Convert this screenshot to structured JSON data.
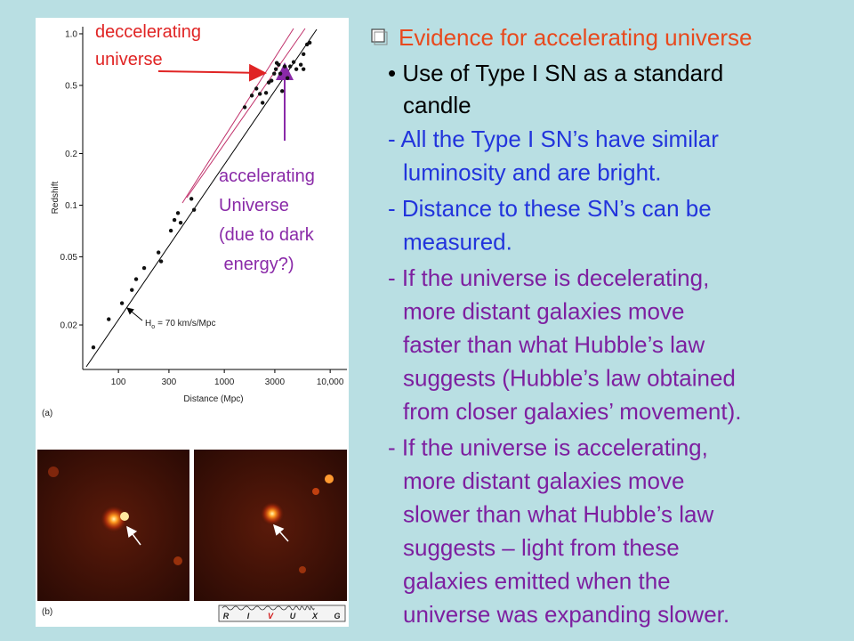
{
  "chart_data": {
    "type": "scatter",
    "y_label": "Redshift",
    "x_label": "Distance (Mpc)",
    "panel_label": "(a)",
    "hubble_label": {
      "symbol": "H",
      "subscript": "o",
      "text": "= 70 km/s/Mpc"
    },
    "color": "#111111",
    "log_x": true,
    "log_y": true,
    "xlim": [
      46,
      14400
    ],
    "ylim": [
      0.011,
      1.1
    ],
    "xticks": [
      100,
      300,
      1000,
      3000,
      {
        "value": 10000,
        "label": "10,000"
      }
    ],
    "yticks": [
      {
        "value": 1,
        "label": "1.0"
      },
      0.5,
      0.2,
      0.1,
      0.05,
      0.02
    ],
    "x": [
      58,
      81,
      108,
      134,
      147,
      175,
      239,
      253,
      313,
      338,
      365,
      387,
      489,
      518,
      1560,
      1820,
      2010,
      2170,
      2300,
      2480,
      2630,
      2790,
      2960,
      3070,
      3260,
      3380,
      3520,
      3720,
      3950,
      4190,
      4520,
      4790,
      5280,
      5600,
      5600,
      6050,
      6410,
      3130
    ],
    "y": [
      0.0148,
      0.0216,
      0.0268,
      0.032,
      0.037,
      0.043,
      0.053,
      0.047,
      0.071,
      0.082,
      0.09,
      0.079,
      0.109,
      0.094,
      0.373,
      0.436,
      0.479,
      0.446,
      0.396,
      0.452,
      0.52,
      0.533,
      0.586,
      0.622,
      0.66,
      0.586,
      0.463,
      0.645,
      0.552,
      0.645,
      0.684,
      0.622,
      0.66,
      0.622,
      0.761,
      0.867,
      0.888,
      0.676
    ]
  },
  "figure": {
    "decelerating_label": [
      "deccelerating",
      "universe"
    ],
    "accelerating_label": [
      "accelerating",
      "Universe",
      "(due to dark",
      " energy?)"
    ],
    "panel_b_label": "(b)",
    "filter_bands": [
      "R",
      "I",
      "V",
      "U",
      "X",
      "G"
    ]
  },
  "slide": {
    "heading": "Evidence for accelerating universe",
    "bullet": [
      "• Use of Type I SN as a standard",
      "candle"
    ],
    "blue_items": [
      [
        "- All the Type I SN’s have similar",
        "luminosity and are bright."
      ],
      [
        "- Distance to these SN’s can be",
        "measured."
      ]
    ],
    "purple_items": [
      [
        "- If the universe is decelerating,",
        "more distant galaxies move",
        "faster than what Hubble’s law",
        "suggests (Hubble’s law obtained",
        "from closer galaxies’ movement)."
      ],
      [
        "- If the universe is accelerating,",
        "more distant galaxies move",
        "slower than what Hubble’s law",
        "suggests – light from these",
        "galaxies emitted when the",
        "universe was expanding slower."
      ]
    ]
  }
}
